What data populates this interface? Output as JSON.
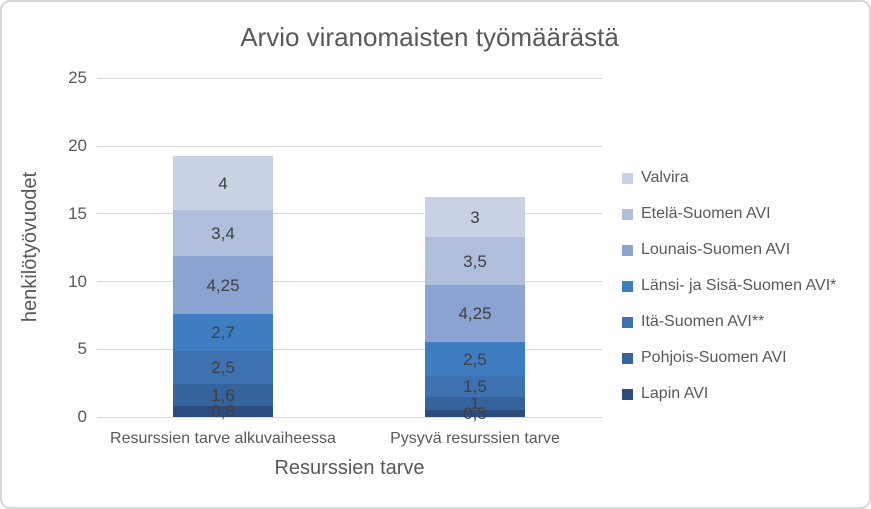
{
  "chart_data": {
    "type": "bar",
    "stacked": true,
    "title": "Arvio viranomaisten työmäärästä",
    "xlabel": "Resurssien tarve",
    "ylabel": "henkilötyövuodet",
    "ylim": [
      0,
      25
    ],
    "yticks": [
      0,
      5,
      10,
      15,
      20,
      25
    ],
    "grid": true,
    "legend_position": "right",
    "categories": [
      "Resurssien tarve alkuvaiheessa",
      "Pysyvä resurssien tarve"
    ],
    "series": [
      {
        "name": "Valvira",
        "color": "#C9D2E5",
        "values": [
          4.0,
          3.0
        ],
        "labels": [
          "4",
          "3"
        ]
      },
      {
        "name": "Etelä-Suomen AVI",
        "color": "#AFBEDB",
        "values": [
          3.4,
          3.5
        ],
        "labels": [
          "3,4",
          "3,5"
        ]
      },
      {
        "name": "Lounais-Suomen AVI",
        "color": "#8BA3D0",
        "values": [
          4.25,
          4.25
        ],
        "labels": [
          "4,25",
          "4,25"
        ]
      },
      {
        "name": "Länsi- ja Sisä-Suomen AVI*",
        "color": "#3F7DC3",
        "values": [
          2.7,
          2.5
        ],
        "labels": [
          "2,7",
          "2,5"
        ]
      },
      {
        "name": "Itä-Suomen AVI**",
        "color": "#3D71B0",
        "values": [
          2.5,
          1.5
        ],
        "labels": [
          "2,5",
          "1,5"
        ]
      },
      {
        "name": "Pohjois-Suomen AVI",
        "color": "#35639C",
        "values": [
          1.6,
          1.0
        ],
        "labels": [
          "1,6",
          "1"
        ]
      },
      {
        "name": "Lapin AVI",
        "color": "#2A4D7E",
        "values": [
          0.8,
          0.5
        ],
        "labels": [
          "0,8",
          "0,5"
        ]
      }
    ]
  },
  "colors": {
    "title_text": "#595959",
    "axis_text": "#595959",
    "data_label_text": "#404040",
    "gridline": "#D9D9D9",
    "frame_border": "#D8D8D8",
    "background": "#FFFFFF"
  }
}
